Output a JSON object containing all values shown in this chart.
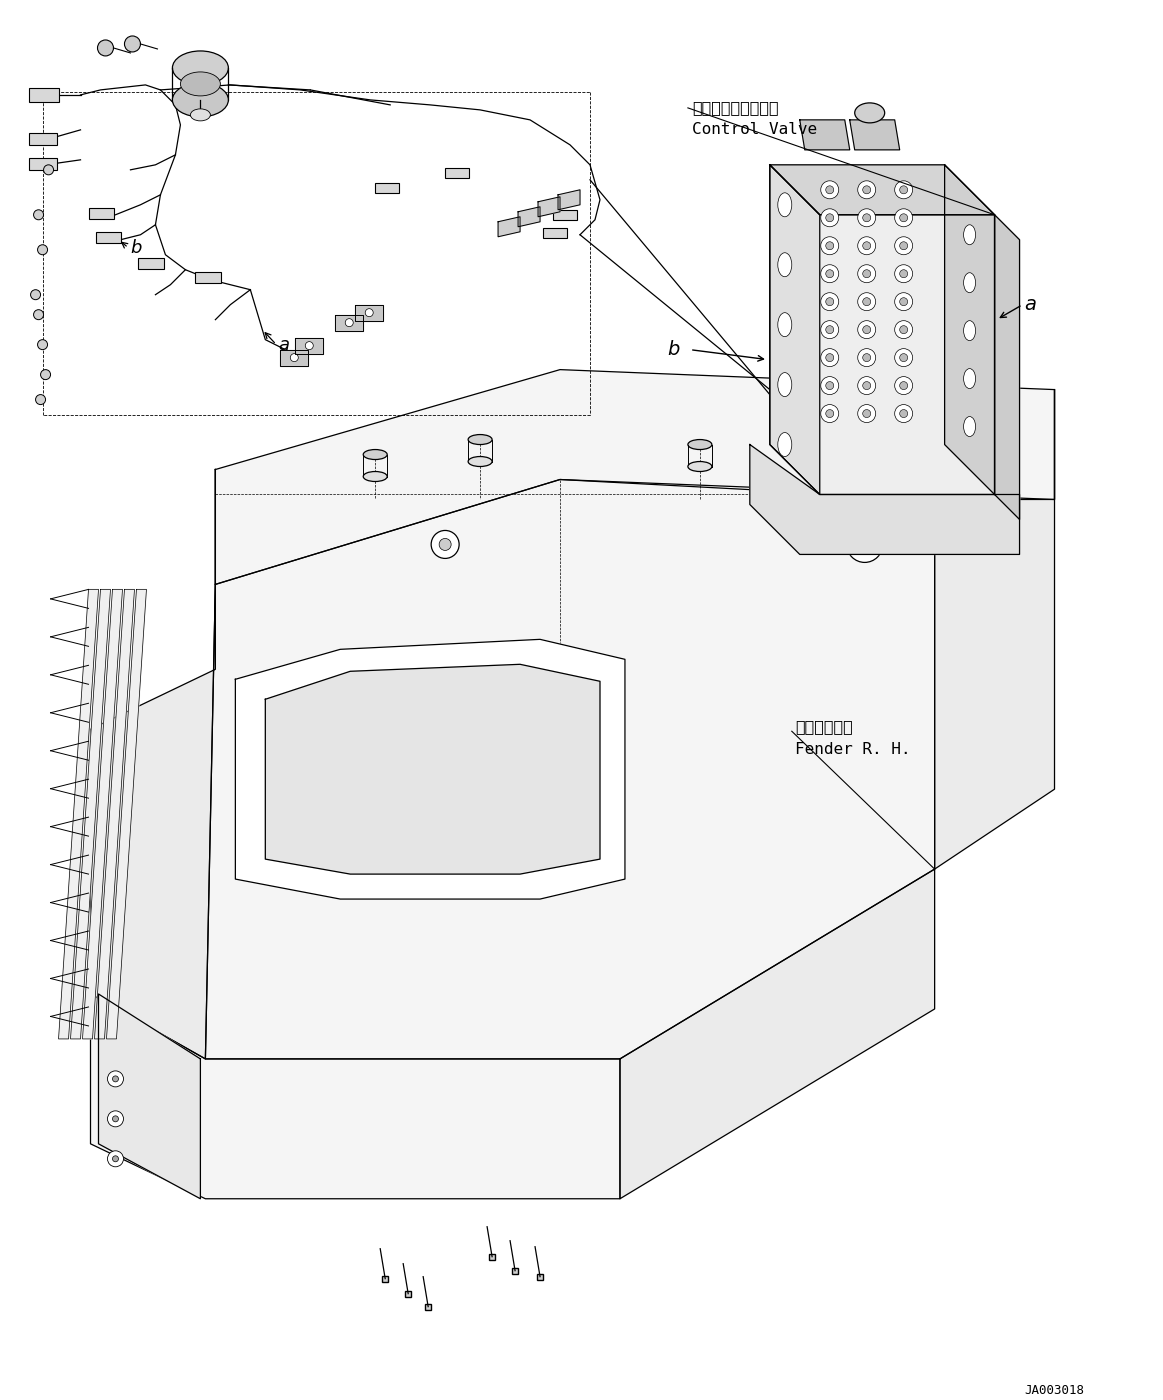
{
  "bg_color": "#ffffff",
  "line_color": "#000000",
  "lw": 0.9,
  "annotation_cv_jp": "コントロールバルブ",
  "annotation_cv_en": "Control Valve",
  "annotation_fr_jp": "フェンダ　右",
  "annotation_fr_en": "Fender R. H.",
  "diagram_id": "JA003018",
  "label_a": "a",
  "label_b": "b",
  "figsize": [
    11.63,
    14.0
  ],
  "dpi": 100
}
